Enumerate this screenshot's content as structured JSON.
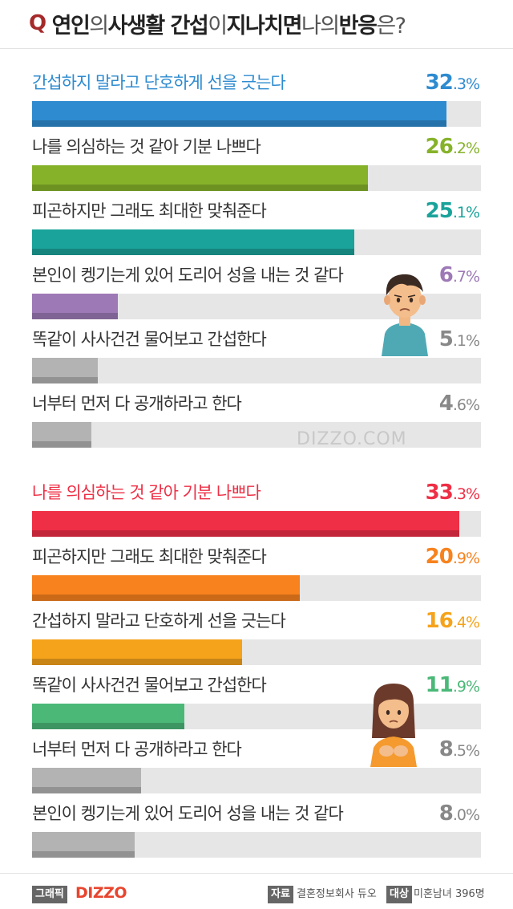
{
  "title": {
    "q": "Q",
    "parts": [
      {
        "text": "연인",
        "bold": true
      },
      {
        "text": "의 ",
        "bold": false
      },
      {
        "text": "사생활 간섭",
        "bold": true
      },
      {
        "text": "이 ",
        "bold": false
      },
      {
        "text": "지나치면",
        "bold": true
      },
      {
        "text": " 나의 ",
        "bold": false
      },
      {
        "text": "반응",
        "bold": true
      },
      {
        "text": "은?",
        "bold": false
      }
    ]
  },
  "watermark": "DIZZO.COM",
  "footer": {
    "tag_graphic": "그래픽",
    "brand": "DIZZO",
    "tag_source": "자료",
    "source": "결혼정보회사 듀오",
    "tag_target": "대상",
    "target": "미혼남녀 396명"
  },
  "colors": {
    "group1": [
      "#2e8bd0",
      "#86b22a",
      "#1aa39a",
      "#9d79b6",
      "#b3b3b3",
      "#b3b3b3"
    ],
    "group2": [
      "#ee2f45",
      "#f7821e",
      "#f5a31b",
      "#4bb878",
      "#b3b3b3",
      "#b3b3b3"
    ],
    "label_group1_first": "#2e8bd0",
    "label_group2_first": "#ee2f45"
  },
  "chart_data": [
    {
      "type": "bar",
      "series": [
        {
          "values": [
            32.3,
            26.2,
            25.1,
            6.7,
            5.1,
            4.6
          ]
        }
      ],
      "categories": [
        "간섭하지 말라고 단호하게 선을 긋는다",
        "나를 의심하는 것 같아 기분 나쁘다",
        "피곤하지만 그래도 최대한 맞춰준다",
        "본인이 켕기는게 있어 도리어 성을 내는 것 같다",
        "똑같이 사사건건 물어보고 간섭한다",
        "너부터 먼저 다 공개하라고 한다"
      ],
      "value_labels": [
        {
          "int": "32",
          "dec": ".3%"
        },
        {
          "int": "26",
          "dec": ".2%"
        },
        {
          "int": "25",
          "dec": ".1%"
        },
        {
          "int": "6",
          "dec": ".7%"
        },
        {
          "int": "5",
          "dec": ".1%"
        },
        {
          "int": "4",
          "dec": ".6%"
        }
      ],
      "ylim": [
        0,
        35
      ]
    },
    {
      "type": "bar",
      "series": [
        {
          "values": [
            33.3,
            20.9,
            16.4,
            11.9,
            8.5,
            8.0
          ]
        }
      ],
      "categories": [
        "나를 의심하는 것 같아 기분 나쁘다",
        "피곤하지만 그래도 최대한 맞춰준다",
        "간섭하지 말라고 단호하게 선을 긋는다",
        "똑같이 사사건건 물어보고 간섭한다",
        "너부터 먼저 다 공개하라고 한다",
        "본인이 켕기는게 있어 도리어 성을 내는 것 같다"
      ],
      "value_labels": [
        {
          "int": "33",
          "dec": ".3%"
        },
        {
          "int": "20",
          "dec": ".9%"
        },
        {
          "int": "16",
          "dec": ".4%"
        },
        {
          "int": "11",
          "dec": ".9%"
        },
        {
          "int": "8",
          "dec": ".5%"
        },
        {
          "int": "8",
          "dec": ".0%"
        }
      ],
      "ylim": [
        0,
        35
      ]
    }
  ]
}
